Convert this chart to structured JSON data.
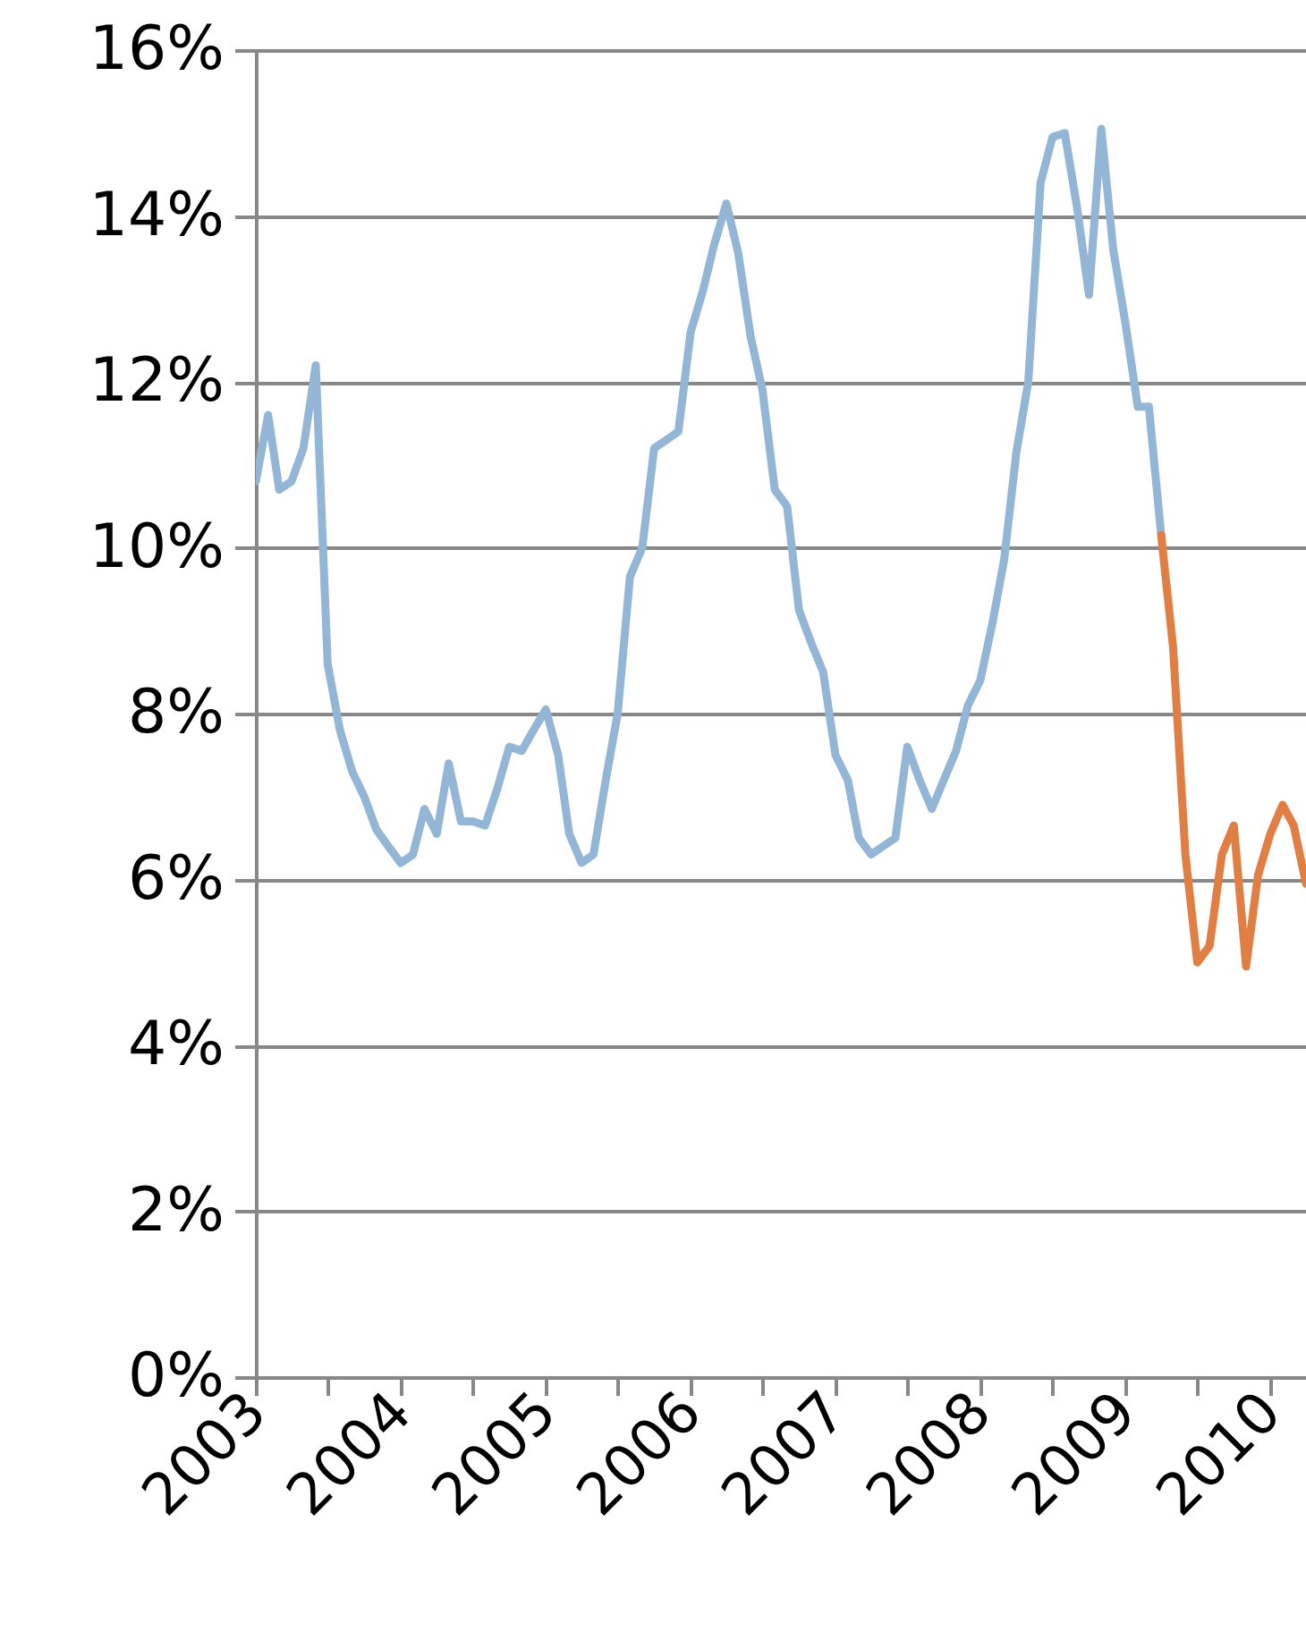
{
  "chart_data": {
    "type": "line",
    "grid": "y",
    "line_style": "solid",
    "marker": "none",
    "xlim": [
      "2003-01",
      "2010-04"
    ],
    "xticks": [
      {
        "value": "2003",
        "label": "2003"
      },
      {
        "value": "2003-07",
        "label": null
      },
      {
        "value": "2004",
        "label": "2004"
      },
      {
        "value": "2004-07",
        "label": null
      },
      {
        "value": "2005",
        "label": "2005"
      },
      {
        "value": "2005-07",
        "label": null
      },
      {
        "value": "2006",
        "label": "2006"
      },
      {
        "value": "2006-07",
        "label": null
      },
      {
        "value": "2007",
        "label": "2007"
      },
      {
        "value": "2007-07",
        "label": null
      },
      {
        "value": "2008",
        "label": "2008"
      },
      {
        "value": "2008-07",
        "label": null
      },
      {
        "value": "2009",
        "label": "2009"
      },
      {
        "value": "2009-07",
        "label": null
      },
      {
        "value": "2010",
        "label": "2010"
      }
    ],
    "ylim": [
      0,
      16
    ],
    "yticks": [
      {
        "value": 0,
        "label": "0%"
      },
      {
        "value": 2,
        "label": "2%"
      },
      {
        "value": 4,
        "label": "4%"
      },
      {
        "value": 6,
        "label": "6%"
      },
      {
        "value": 8,
        "label": "8%"
      },
      {
        "value": 10,
        "label": "10%"
      },
      {
        "value": 12,
        "label": "12%"
      },
      {
        "value": 14,
        "label": "14%"
      },
      {
        "value": 16,
        "label": "16%"
      }
    ],
    "series": [
      {
        "color": "#93b6d6",
        "x": [
          "2003-01",
          "2003-02",
          "2003-03",
          "2003-04",
          "2003-05",
          "2003-06",
          "2003-07",
          "2003-08",
          "2003-09",
          "2003-10",
          "2003-11",
          "2003-12",
          "2004-01",
          "2004-02",
          "2004-03",
          "2004-04",
          "2004-05",
          "2004-06",
          "2004-07",
          "2004-08",
          "2004-09",
          "2004-10",
          "2004-11",
          "2004-12",
          "2005-01",
          "2005-02",
          "2005-03",
          "2005-04",
          "2005-05",
          "2005-06",
          "2005-07",
          "2005-08",
          "2005-09",
          "2005-10",
          "2005-11",
          "2005-12",
          "2006-01",
          "2006-02",
          "2006-03",
          "2006-04",
          "2006-05",
          "2006-06",
          "2006-07",
          "2006-08",
          "2006-09",
          "2006-10",
          "2006-11",
          "2006-12",
          "2007-01",
          "2007-02",
          "2007-03",
          "2007-04",
          "2007-05",
          "2007-06",
          "2007-07",
          "2007-08",
          "2007-09",
          "2007-10",
          "2007-11",
          "2007-12",
          "2008-01",
          "2008-02",
          "2008-03",
          "2008-04",
          "2008-05",
          "2008-06",
          "2008-07",
          "2008-08",
          "2008-09",
          "2008-10",
          "2008-11",
          "2008-12",
          "2009-01",
          "2009-02",
          "2009-03",
          "2009-04"
        ],
        "values": [
          10.8,
          11.6,
          10.7,
          10.8,
          11.2,
          12.2,
          8.6,
          7.8,
          7.3,
          7.0,
          6.6,
          6.4,
          6.2,
          6.3,
          6.85,
          6.55,
          7.4,
          6.7,
          6.7,
          6.65,
          7.1,
          7.6,
          7.55,
          7.8,
          8.05,
          7.5,
          6.55,
          6.2,
          6.3,
          7.2,
          8.0,
          9.65,
          10.0,
          11.2,
          11.3,
          11.4,
          12.6,
          13.1,
          13.65,
          14.15,
          13.55,
          12.55,
          11.9,
          10.7,
          10.5,
          9.25,
          8.85,
          8.5,
          7.5,
          7.2,
          6.5,
          6.3,
          6.4,
          6.5,
          7.6,
          7.2,
          6.85,
          7.2,
          7.55,
          8.1,
          8.4,
          9.1,
          9.85,
          11.15,
          12.0,
          14.4,
          14.95,
          15.0,
          14.1,
          13.05,
          15.05,
          13.6,
          12.7,
          11.7,
          11.7,
          10.15
        ]
      },
      {
        "color": "#e07e44",
        "x": [
          "2009-04",
          "2009-05",
          "2009-06",
          "2009-07",
          "2009-08",
          "2009-09",
          "2009-10",
          "2009-11",
          "2009-12",
          "2010-01",
          "2010-02",
          "2010-03",
          "2010-04"
        ],
        "values": [
          10.15,
          8.8,
          6.3,
          5.0,
          5.2,
          6.3,
          6.65,
          4.95,
          6.05,
          6.55,
          6.9,
          6.65,
          5.95
        ]
      }
    ]
  }
}
